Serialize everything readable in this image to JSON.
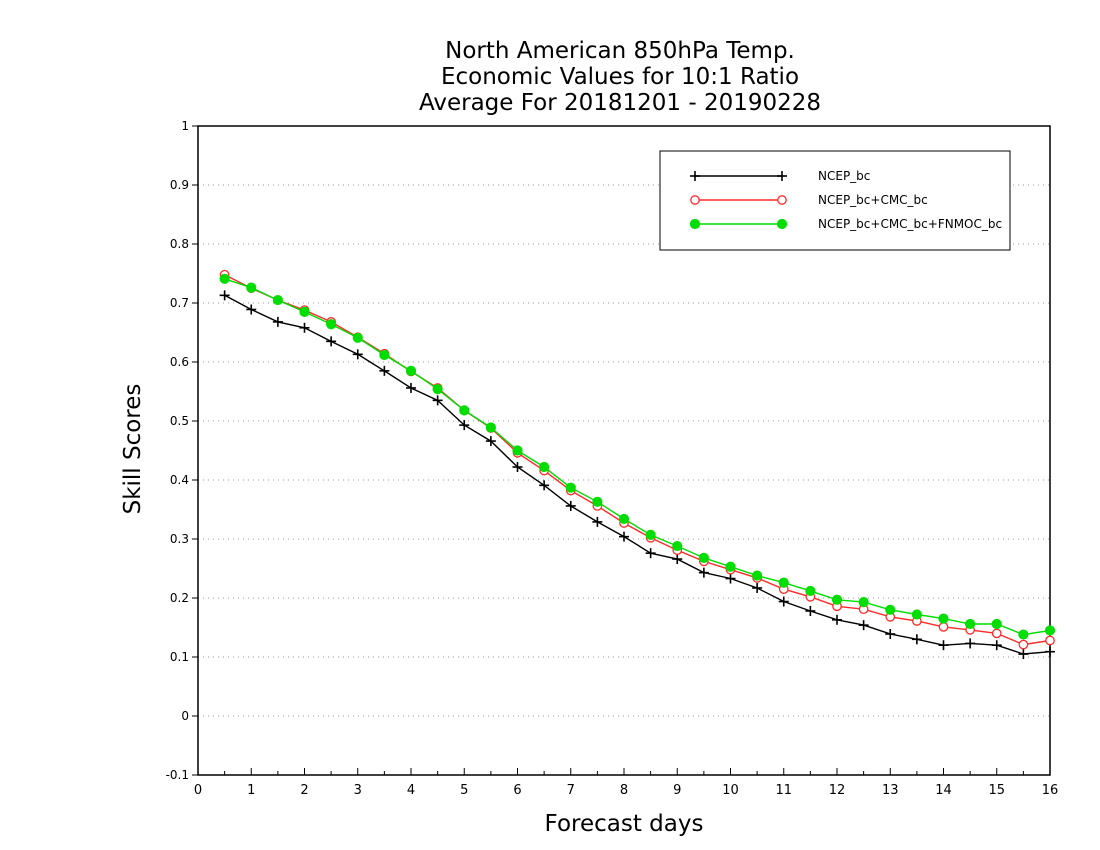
{
  "chart_data": {
    "type": "line",
    "title_lines": [
      "North American 850hPa Temp.",
      "Economic Values for 10:1 Ratio",
      "Average For 20181201 - 20190228"
    ],
    "xlabel": "Forecast days",
    "ylabel": "Skill Scores",
    "xlim": [
      0,
      16
    ],
    "ylim": [
      -0.1,
      1
    ],
    "xticks": [
      "0",
      "1",
      "2",
      "3",
      "4",
      "5",
      "6",
      "7",
      "8",
      "9",
      "10",
      "11",
      "12",
      "13",
      "14",
      "15",
      "16"
    ],
    "yticks": [
      "-0.1",
      "0",
      "0.1",
      "0.2",
      "0.3",
      "0.4",
      "0.5",
      "0.6",
      "0.7",
      "0.8",
      "0.9",
      "1"
    ],
    "grid": "horizontal dotted",
    "legend_position": "top-right",
    "x": [
      0.5,
      1,
      1.5,
      2,
      2.5,
      3,
      3.5,
      4,
      4.5,
      5,
      5.5,
      6,
      6.5,
      7,
      7.5,
      8,
      8.5,
      9,
      9.5,
      10,
      10.5,
      11,
      11.5,
      12,
      12.5,
      13,
      13.5,
      14,
      14.5,
      15,
      15.5,
      16
    ],
    "series": [
      {
        "name": "NCEP_bc",
        "color": "#000000",
        "marker": "plus",
        "values": [
          0.713,
          0.689,
          0.668,
          0.658,
          0.635,
          0.613,
          0.585,
          0.556,
          0.535,
          0.493,
          0.466,
          0.422,
          0.391,
          0.356,
          0.329,
          0.304,
          0.276,
          0.266,
          0.243,
          0.233,
          0.217,
          0.194,
          0.178,
          0.163,
          0.154,
          0.139,
          0.13,
          0.12,
          0.123,
          0.12,
          0.105,
          0.109
        ]
      },
      {
        "name": "NCEP_bc+CMC_bc",
        "color": "#ff2a2a",
        "marker": "open-circle",
        "values": [
          0.748,
          0.725,
          0.705,
          0.688,
          0.668,
          0.642,
          0.614,
          0.584,
          0.556,
          0.518,
          0.488,
          0.446,
          0.416,
          0.382,
          0.356,
          0.327,
          0.302,
          0.281,
          0.262,
          0.248,
          0.234,
          0.215,
          0.202,
          0.186,
          0.181,
          0.168,
          0.161,
          0.151,
          0.146,
          0.14,
          0.121,
          0.128
        ]
      },
      {
        "name": "NCEP_bc+CMC_bc+FNMOC_bc",
        "color": "#00dd00",
        "marker": "filled-circle",
        "values": [
          0.741,
          0.726,
          0.705,
          0.685,
          0.664,
          0.641,
          0.612,
          0.585,
          0.554,
          0.518,
          0.489,
          0.45,
          0.422,
          0.387,
          0.363,
          0.334,
          0.307,
          0.288,
          0.268,
          0.253,
          0.238,
          0.226,
          0.212,
          0.197,
          0.193,
          0.18,
          0.172,
          0.165,
          0.156,
          0.156,
          0.138,
          0.145
        ]
      }
    ]
  }
}
